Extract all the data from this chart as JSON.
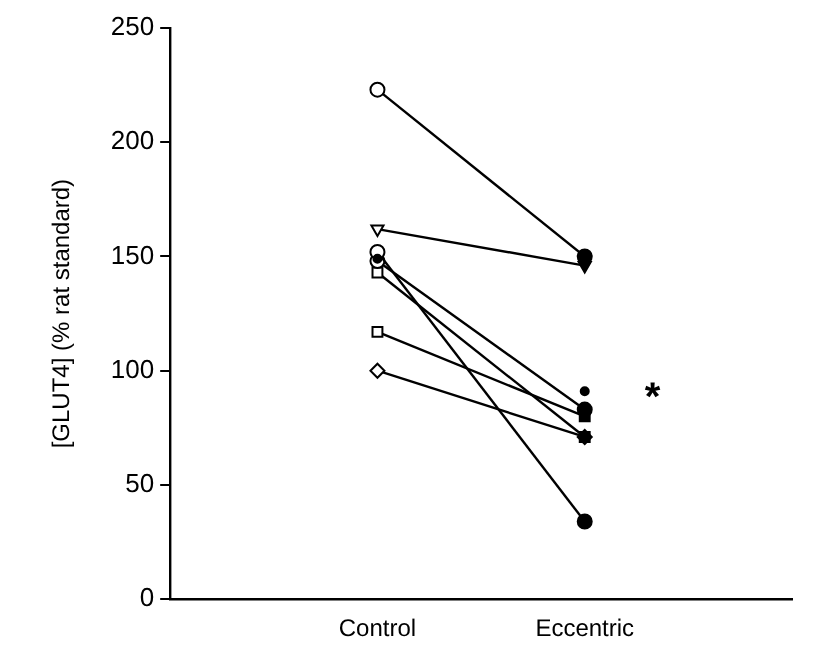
{
  "chart_data": {
    "type": "line",
    "ylabel": "[GLUT4] (% rat standard)",
    "categories": [
      "Control",
      "Eccentric"
    ],
    "ylim": [
      0,
      250
    ],
    "yticks": [
      0,
      50,
      100,
      150,
      200,
      250
    ],
    "grid": false,
    "legend": false,
    "series": [
      {
        "color": "#000000",
        "marker": "circle",
        "values": [
          223,
          150
        ]
      },
      {
        "color": "#000000",
        "marker": "triangle",
        "values": [
          162,
          146
        ]
      },
      {
        "color": "#000000",
        "marker": "circle",
        "values": [
          152,
          34
        ]
      },
      {
        "color": "#000000",
        "marker": "circle",
        "values": [
          148,
          83
        ]
      },
      {
        "color": "#000000",
        "marker": "square",
        "values": [
          143,
          71
        ]
      },
      {
        "color": "#000000",
        "marker": "square",
        "values": [
          117,
          80
        ]
      },
      {
        "color": "#000000",
        "marker": "diamond",
        "values": [
          100,
          71
        ]
      },
      {
        "type": "scatter",
        "color": "#000000",
        "marker": "circle",
        "values": [
          149,
          91
        ]
      }
    ],
    "annotations": [
      {
        "text": "*",
        "x": "Eccentric",
        "y": 91
      }
    ]
  }
}
